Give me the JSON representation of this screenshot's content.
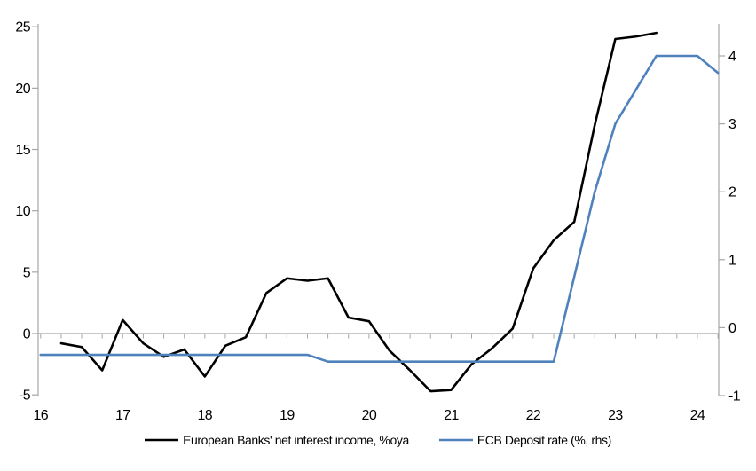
{
  "chart_data": {
    "type": "line",
    "title": "",
    "x_axis": {
      "min": 2015.97,
      "max": 2024.26,
      "tick_step_years": 0.25,
      "tick_labels": [
        {
          "t": 2016,
          "label": "16"
        },
        {
          "t": 2017,
          "label": "17"
        },
        {
          "t": 2018,
          "label": "18"
        },
        {
          "t": 2019,
          "label": "19"
        },
        {
          "t": 2020,
          "label": "20"
        },
        {
          "t": 2021,
          "label": "21"
        },
        {
          "t": 2022,
          "label": "22"
        },
        {
          "t": 2023,
          "label": "23"
        },
        {
          "t": 2024,
          "label": "24"
        }
      ]
    },
    "left_axis": {
      "min": -5.06,
      "max": 25.23,
      "ticks": [
        25,
        20,
        15,
        10,
        5,
        0,
        -5
      ],
      "tick_labels": [
        "25",
        "20",
        "15",
        "10",
        "5",
        "0",
        "-5"
      ]
    },
    "right_axis": {
      "min": -1.0,
      "max": 4.47,
      "ticks": [
        4,
        3,
        2,
        1,
        0,
        -1
      ],
      "tick_labels": [
        "4",
        "3",
        "2",
        "1",
        "0",
        "-1"
      ]
    },
    "series": [
      {
        "name": "European Banks' net interest income, %oya",
        "axis": "left",
        "color": "#000000",
        "x": [
          2016.25,
          2016.5,
          2016.75,
          2017.0,
          2017.25,
          2017.5,
          2017.75,
          2018.0,
          2018.25,
          2018.5,
          2018.75,
          2019.0,
          2019.25,
          2019.5,
          2019.75,
          2020.0,
          2020.25,
          2020.5,
          2020.75,
          2021.0,
          2021.25,
          2021.5,
          2021.75,
          2022.0,
          2022.25,
          2022.5,
          2022.75,
          2023.0,
          2023.25,
          2023.5
        ],
        "values": [
          -0.8,
          -1.1,
          -3.0,
          1.1,
          -0.8,
          -1.9,
          -1.3,
          -3.5,
          -1.0,
          -0.3,
          3.3,
          4.5,
          4.3,
          4.5,
          1.3,
          1.0,
          -1.4,
          -3.0,
          -4.7,
          -4.6,
          -2.5,
          -1.2,
          0.4,
          5.3,
          7.6,
          9.1,
          17.0,
          24.0,
          24.2,
          24.5
        ]
      },
      {
        "name": "ECB Deposit rate (%, rhs)",
        "axis": "right",
        "color": "#4f81bd",
        "x": [
          2016.0,
          2016.25,
          2016.5,
          2016.75,
          2017.0,
          2017.25,
          2017.5,
          2017.75,
          2018.0,
          2018.25,
          2018.5,
          2018.75,
          2019.0,
          2019.25,
          2019.5,
          2019.75,
          2020.0,
          2020.25,
          2020.5,
          2020.75,
          2021.0,
          2021.25,
          2021.5,
          2021.75,
          2022.0,
          2022.25,
          2022.5,
          2022.75,
          2023.0,
          2023.25,
          2023.5,
          2023.75,
          2024.0,
          2024.25
        ],
        "values": [
          -0.4,
          -0.4,
          -0.4,
          -0.4,
          -0.4,
          -0.4,
          -0.4,
          -0.4,
          -0.4,
          -0.4,
          -0.4,
          -0.4,
          -0.4,
          -0.4,
          -0.5,
          -0.5,
          -0.5,
          -0.5,
          -0.5,
          -0.5,
          -0.5,
          -0.5,
          -0.5,
          -0.5,
          -0.5,
          -0.5,
          0.75,
          2.0,
          3.0,
          3.5,
          4.0,
          4.0,
          4.0,
          3.75
        ]
      }
    ],
    "legend": {
      "position": "bottom",
      "entries": [
        "European Banks' net interest income, %oya",
        "ECB Deposit rate (%, rhs)"
      ]
    },
    "grid": {
      "zero_line_only": true
    }
  },
  "colors": {
    "axis": "#a6a6a6",
    "background": "#ffffff",
    "text": "#000000",
    "series_nii": "#000000",
    "series_ecb": "#4f81bd"
  }
}
